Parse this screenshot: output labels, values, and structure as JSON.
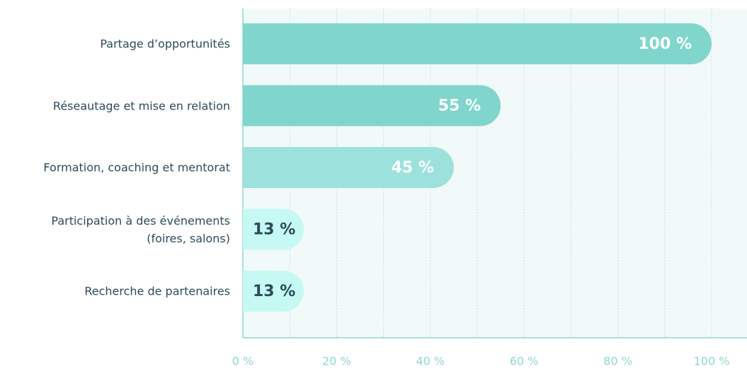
{
  "chart_data": {
    "type": "barh",
    "categories": [
      "Partage d’opportunités",
      "Réseautage et mise en relation",
      "Formation, coaching et mentorat",
      "Participation à des événements (foires, salons)",
      "Recherche de partenaires"
    ],
    "values": [
      100,
      55,
      45,
      13,
      13
    ],
    "value_labels": [
      "100 %",
      "55 %",
      "45 %",
      "13 %",
      "13 %"
    ],
    "colors": [
      "#80d6cc",
      "#80d6cc",
      "#9de1dc",
      "#c6f8f4",
      "#c6f8f4"
    ],
    "label_colors": [
      "#ffffff",
      "#ffffff",
      "#ffffff",
      "#2b4a56",
      "#2b4a56"
    ],
    "xlim": [
      0,
      100
    ],
    "xticks": [
      {
        "value": 0,
        "label": "0 %"
      },
      {
        "value": 20,
        "label": "20 %"
      },
      {
        "value": 40,
        "label": "40 %"
      },
      {
        "value": 60,
        "label": "60 %"
      },
      {
        "value": 80,
        "label": "80 %"
      },
      {
        "value": 100,
        "label": "100 %"
      }
    ],
    "x_minor_ticks": [
      10,
      30,
      50,
      70,
      90
    ],
    "grid": true
  }
}
